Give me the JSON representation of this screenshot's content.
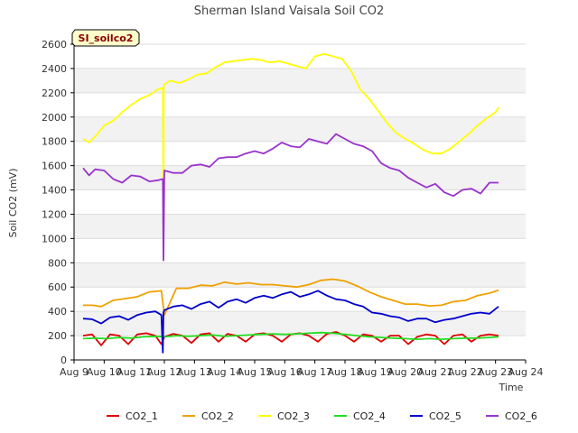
{
  "chart_data": {
    "type": "line",
    "title": "Sherman Island Vaisala Soil CO2",
    "xlabel": "Time",
    "ylabel": "Soil CO2 (mV)",
    "ylim": [
      0,
      2600
    ],
    "xlim": [
      9,
      24
    ],
    "yticks": [
      0,
      200,
      400,
      600,
      800,
      1000,
      1200,
      1400,
      1600,
      1800,
      2000,
      2200,
      2400,
      2600
    ],
    "xtick_values": [
      9,
      10,
      11,
      12,
      13,
      14,
      15,
      16,
      17,
      18,
      19,
      20,
      21,
      22,
      23,
      24
    ],
    "xtick_labels": [
      "Aug 9",
      "Aug 10",
      "Aug 11",
      "Aug 12",
      "Aug 13",
      "Aug 14",
      "Aug 15",
      "Aug 16",
      "Aug 17",
      "Aug 18",
      "Aug 19",
      "Aug 20",
      "Aug 21",
      "Aug 22",
      "Aug 23",
      "Aug 24"
    ],
    "grid": "horizontal bands",
    "legend_position": "bottom",
    "site_label": "SI_soilco2",
    "series": [
      {
        "name": "CO2_1",
        "color": "#dd0000",
        "x": [
          9.3,
          9.6,
          9.9,
          10.2,
          10.5,
          10.8,
          11.1,
          11.4,
          11.7,
          11.9,
          12.0,
          12.3,
          12.6,
          12.9,
          13.2,
          13.5,
          13.8,
          14.1,
          14.4,
          14.7,
          15.0,
          15.3,
          15.6,
          15.9,
          16.2,
          16.5,
          16.8,
          17.1,
          17.4,
          17.7,
          18.0,
          18.3,
          18.6,
          18.9,
          19.2,
          19.5,
          19.8,
          20.1,
          20.4,
          20.7,
          21.0,
          21.3,
          21.6,
          21.9,
          22.2,
          22.5,
          22.8,
          23.1
        ],
        "y": [
          200,
          210,
          120,
          210,
          200,
          130,
          210,
          220,
          200,
          130,
          190,
          215,
          200,
          140,
          210,
          220,
          150,
          215,
          200,
          150,
          210,
          220,
          200,
          150,
          210,
          220,
          200,
          150,
          215,
          230,
          200,
          150,
          210,
          200,
          150,
          200,
          200,
          130,
          190,
          210,
          200,
          130,
          200,
          210,
          150,
          200,
          210,
          200
        ]
      },
      {
        "name": "CO2_2",
        "color": "#f0a000",
        "x": [
          9.3,
          9.6,
          9.9,
          10.3,
          10.7,
          11.1,
          11.5,
          11.9,
          12.0,
          12.4,
          12.8,
          13.2,
          13.6,
          14.0,
          14.4,
          14.8,
          15.2,
          15.6,
          16.0,
          16.4,
          16.8,
          17.2,
          17.6,
          18.0,
          18.4,
          18.8,
          19.2,
          19.6,
          20.0,
          20.4,
          20.8,
          21.2,
          21.6,
          22.0,
          22.4,
          22.8,
          23.1
        ],
        "y": [
          450,
          450,
          440,
          490,
          505,
          520,
          560,
          570,
          370,
          590,
          590,
          615,
          610,
          640,
          625,
          635,
          620,
          620,
          610,
          600,
          620,
          655,
          665,
          650,
          610,
          560,
          520,
          490,
          460,
          460,
          445,
          450,
          480,
          490,
          530,
          550,
          575
        ]
      },
      {
        "name": "CO2_3",
        "color": "#ffff00",
        "x": [
          9.3,
          9.5,
          9.7,
          10.0,
          10.3,
          10.6,
          10.9,
          11.2,
          11.5,
          11.8,
          11.95,
          11.97,
          11.98,
          12.0,
          12.2,
          12.5,
          12.8,
          13.1,
          13.4,
          13.7,
          14.0,
          14.3,
          14.6,
          14.9,
          15.2,
          15.5,
          15.8,
          16.1,
          16.4,
          16.7,
          17.0,
          17.3,
          17.6,
          17.9,
          18.2,
          18.5,
          18.8,
          19.1,
          19.4,
          19.7,
          20.0,
          20.3,
          20.6,
          20.9,
          21.2,
          21.5,
          21.8,
          22.1,
          22.4,
          22.7,
          23.0,
          23.1
        ],
        "y": [
          1820,
          1790,
          1840,
          1930,
          1970,
          2040,
          2100,
          2150,
          2180,
          2230,
          2240,
          820,
          2250,
          2270,
          2300,
          2280,
          2310,
          2350,
          2360,
          2410,
          2450,
          2460,
          2470,
          2480,
          2470,
          2450,
          2460,
          2440,
          2420,
          2400,
          2500,
          2520,
          2500,
          2480,
          2380,
          2230,
          2150,
          2050,
          1950,
          1870,
          1820,
          1780,
          1730,
          1700,
          1700,
          1740,
          1800,
          1860,
          1930,
          1990,
          2040,
          2080
        ]
      },
      {
        "name": "CO2_4",
        "color": "#22dd22",
        "x": [
          9.3,
          9.7,
          10.1,
          10.5,
          10.9,
          11.3,
          11.7,
          12.0,
          12.4,
          12.8,
          13.2,
          13.6,
          14.0,
          14.4,
          14.8,
          15.2,
          15.6,
          16.0,
          16.4,
          16.8,
          17.2,
          17.6,
          18.0,
          18.4,
          18.8,
          19.2,
          19.6,
          20.0,
          20.4,
          20.8,
          21.2,
          21.6,
          22.0,
          22.4,
          22.8,
          23.1
        ],
        "y": [
          175,
          180,
          175,
          185,
          180,
          190,
          195,
          190,
          200,
          195,
          200,
          205,
          195,
          200,
          205,
          210,
          215,
          210,
          215,
          220,
          225,
          220,
          210,
          200,
          190,
          185,
          180,
          175,
          170,
          175,
          170,
          175,
          180,
          180,
          185,
          190
        ]
      },
      {
        "name": "CO2_5",
        "color": "#0000cc",
        "x": [
          9.3,
          9.6,
          9.9,
          10.2,
          10.5,
          10.8,
          11.1,
          11.4,
          11.7,
          11.9,
          11.95,
          11.97,
          12.0,
          12.3,
          12.6,
          12.9,
          13.2,
          13.5,
          13.8,
          14.1,
          14.4,
          14.7,
          15.0,
          15.3,
          15.6,
          15.9,
          16.2,
          16.5,
          16.8,
          17.1,
          17.4,
          17.7,
          18.0,
          18.3,
          18.6,
          18.9,
          19.2,
          19.5,
          19.8,
          20.1,
          20.4,
          20.7,
          21.0,
          21.3,
          21.6,
          21.9,
          22.2,
          22.5,
          22.8,
          23.1
        ],
        "y": [
          340,
          335,
          300,
          350,
          360,
          330,
          370,
          390,
          400,
          370,
          60,
          390,
          410,
          440,
          450,
          420,
          460,
          480,
          430,
          480,
          500,
          470,
          510,
          530,
          510,
          540,
          560,
          520,
          540,
          570,
          530,
          500,
          490,
          460,
          440,
          390,
          380,
          360,
          350,
          320,
          340,
          340,
          310,
          330,
          340,
          360,
          380,
          390,
          380,
          440
        ]
      },
      {
        "name": "CO2_6",
        "color": "#9933cc",
        "x": [
          9.3,
          9.5,
          9.7,
          10.0,
          10.3,
          10.6,
          10.9,
          11.2,
          11.5,
          11.8,
          11.95,
          11.97,
          12.0,
          12.3,
          12.6,
          12.9,
          13.2,
          13.5,
          13.8,
          14.1,
          14.4,
          14.7,
          15.0,
          15.3,
          15.6,
          15.9,
          16.2,
          16.5,
          16.8,
          17.1,
          17.4,
          17.7,
          18.0,
          18.3,
          18.6,
          18.9,
          19.2,
          19.5,
          19.8,
          20.1,
          20.4,
          20.7,
          21.0,
          21.3,
          21.6,
          21.9,
          22.2,
          22.5,
          22.8,
          23.1
        ],
        "y": [
          1580,
          1520,
          1570,
          1560,
          1490,
          1460,
          1520,
          1510,
          1470,
          1480,
          1490,
          820,
          1560,
          1540,
          1540,
          1600,
          1610,
          1590,
          1660,
          1670,
          1670,
          1700,
          1720,
          1700,
          1740,
          1790,
          1760,
          1750,
          1820,
          1800,
          1780,
          1860,
          1820,
          1780,
          1760,
          1720,
          1620,
          1580,
          1560,
          1500,
          1460,
          1420,
          1450,
          1380,
          1350,
          1400,
          1410,
          1370,
          1460,
          1460
        ]
      }
    ]
  }
}
